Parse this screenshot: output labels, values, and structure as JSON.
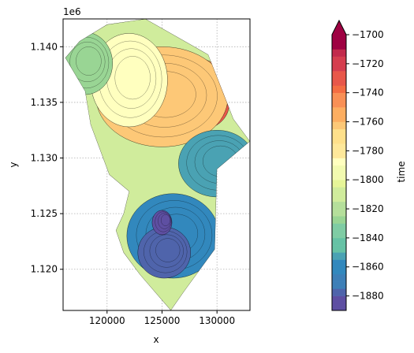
{
  "chart_data": {
    "type": "contour",
    "xlabel": "x",
    "ylabel": "y",
    "y_offset_label": "1e6",
    "xlim": [
      116000,
      133000
    ],
    "ylim": [
      1116300,
      1142500
    ],
    "x_ticks": [
      120000,
      125000,
      130000
    ],
    "x_tick_labels": [
      "120000",
      "125000",
      "130000"
    ],
    "y_ticks": [
      1120000,
      1125000,
      1130000,
      1135000,
      1140000
    ],
    "y_tick_labels": [
      "1.120",
      "1.125",
      "1.130",
      "1.135",
      "1.140"
    ],
    "grid": true,
    "colormap": "Spectral_r",
    "colorbar": {
      "label": "time",
      "extend": "max",
      "levels": [
        -1890,
        -1885,
        -1880,
        -1875,
        -1870,
        -1865,
        -1860,
        -1855,
        -1850,
        -1845,
        -1840,
        -1835,
        -1830,
        -1825,
        -1820,
        -1815,
        -1810,
        -1805,
        -1800,
        -1795,
        -1790,
        -1785,
        -1780,
        -1775,
        -1770,
        -1765,
        -1760,
        -1755,
        -1750,
        -1745,
        -1740,
        -1735,
        -1730,
        -1725,
        -1720,
        -1715,
        -1710,
        -1705,
        -1700
      ],
      "ticks": [
        -1880,
        -1860,
        -1840,
        -1820,
        -1800,
        -1780,
        -1760,
        -1740,
        -1720,
        -1700
      ],
      "tick_labels": [
        "−1880",
        "−1860",
        "−1840",
        "−1820",
        "−1800",
        "−1780",
        "−1760",
        "−1740",
        "−1720",
        "−1700"
      ],
      "colors": [
        "#5e4fa2",
        "#4f64ab",
        "#3d7fb7",
        "#3288bd",
        "#4aa2b3",
        "#66c2a5",
        "#7fcca4",
        "#99d594",
        "#b5df9b",
        "#d0ec9c",
        "#e6f598",
        "#f2fab0",
        "#ffffbf",
        "#fee89a",
        "#fee08b",
        "#fdc877",
        "#fdae61",
        "#f99056",
        "#f46d43",
        "#e8574a",
        "#d53e4f",
        "#c22a4c",
        "#9e0142"
      ]
    },
    "boundary": [
      [
        123500,
        1142500
      ],
      [
        129200,
        1139300
      ],
      [
        131500,
        1133500
      ],
      [
        133000,
        1131500
      ],
      [
        130000,
        1129000
      ],
      [
        129800,
        1121800
      ],
      [
        127000,
        1118000
      ],
      [
        125800,
        1116300
      ],
      [
        123000,
        1119500
      ],
      [
        121500,
        1121500
      ],
      [
        120800,
        1123500
      ],
      [
        121500,
        1125000
      ],
      [
        122000,
        1127000
      ],
      [
        120200,
        1128500
      ],
      [
        118500,
        1133000
      ],
      [
        118000,
        1136000
      ],
      [
        116200,
        1139000
      ],
      [
        117500,
        1140500
      ],
      [
        120000,
        1142000
      ]
    ],
    "zones": [
      {
        "level": -1705,
        "center": [
          128700,
          1134800
        ],
        "r": [
          1600,
          1400
        ]
      },
      {
        "level": -1725,
        "center": [
          128300,
          1134800
        ],
        "r": [
          2800,
          2300
        ]
      },
      {
        "level": -1745,
        "center": [
          127000,
          1136000
        ],
        "r": [
          4300,
          3200
        ]
      },
      {
        "level": -1765,
        "center": [
          125000,
          1135500
        ],
        "r": [
          6000,
          4500
        ]
      },
      {
        "level": -1790,
        "center": [
          122000,
          1137000
        ],
        "r": [
          3500,
          4200
        ]
      },
      {
        "level": -1830,
        "center": [
          118000,
          1138500
        ],
        "r": [
          2500,
          2800
        ]
      },
      {
        "level": -1850,
        "center": [
          130000,
          1129500
        ],
        "r": [
          3500,
          3000
        ]
      },
      {
        "level": -1865,
        "center": [
          126000,
          1123000
        ],
        "r": [
          4200,
          3800
        ]
      },
      {
        "level": -1880,
        "center": [
          125200,
          1121500
        ],
        "r": [
          2400,
          2300
        ]
      },
      {
        "level": -1888,
        "center": [
          125000,
          1124200
        ],
        "r": [
          900,
          1100
        ]
      }
    ]
  }
}
